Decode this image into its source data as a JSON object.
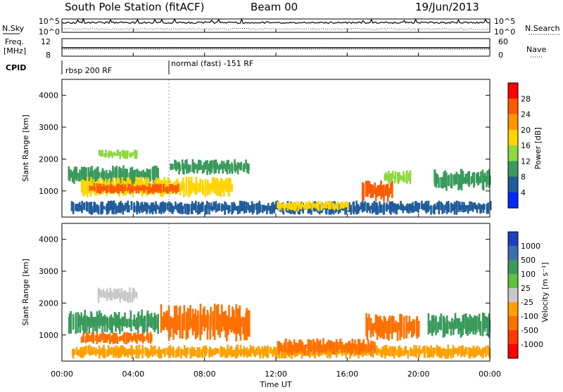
{
  "header": {
    "station": "South Pole Station (fitACF)",
    "beam": "Beam 00",
    "date": "19/Jun/2013"
  },
  "top_panels": {
    "nsky_label": "N.Sky",
    "nsky_ticks": [
      "10^5",
      "10^0"
    ],
    "nsearch_label": "N.Search",
    "nsearch_ticks": [
      "10^5",
      "10^0"
    ],
    "freq_label": "Freq.",
    "freq_unit": "[MHz]",
    "freq_ticks": [
      "12",
      "8"
    ],
    "nave_label": "Nave",
    "nave_ticks": [
      "60",
      "0"
    ],
    "cpid_label": "CPID",
    "cpid_segments": [
      {
        "label": "rbsp 200 RF",
        "start_hour": 0
      },
      {
        "label": "normal (fast) -151 RF",
        "start_hour": 6
      }
    ]
  },
  "x_axis": {
    "label": "Time UT",
    "ticks": [
      "00:00",
      "04:00",
      "08:00",
      "12:00",
      "16:00",
      "20:00",
      "00:00"
    ],
    "range_hours": [
      0,
      24
    ]
  },
  "chart_data": [
    {
      "type": "heatmap",
      "title": "",
      "ylabel": "Slant Range [km]",
      "ylim": [
        180,
        4500
      ],
      "yticks": [
        "4000",
        "3000",
        "2000",
        "1000"
      ],
      "colorbar_label": "Power [dB]",
      "colorbar_ticks": [
        "28",
        "24",
        "20",
        "16",
        "12",
        "8",
        "4"
      ],
      "colorbar_colors": [
        "#ff0000",
        "#ff5a00",
        "#ff9600",
        "#ffd400",
        "#8ed840",
        "#3a9a5c",
        "#205c9a",
        "#0028ff"
      ],
      "regions": [
        {
          "t": [
            0.3,
            5.4
          ],
          "r": [
            1200,
            1800
          ],
          "level": 12
        },
        {
          "t": [
            1.0,
            9.5
          ],
          "r": [
            800,
            1450
          ],
          "level": 20
        },
        {
          "t": [
            1.5,
            6.5
          ],
          "r": [
            900,
            1250
          ],
          "level": 28
        },
        {
          "t": [
            2.0,
            4.2
          ],
          "r": [
            2000,
            2300
          ],
          "level": 16
        },
        {
          "t": [
            6.0,
            10.5
          ],
          "r": [
            1500,
            2000
          ],
          "level": 12
        },
        {
          "t": [
            0.5,
            24.0
          ],
          "r": [
            250,
            700
          ],
          "level": 8
        },
        {
          "t": [
            12.0,
            16.0
          ],
          "r": [
            350,
            700
          ],
          "level": 20
        },
        {
          "t": [
            16.8,
            18.5
          ],
          "r": [
            650,
            1350
          ],
          "level": 28
        },
        {
          "t": [
            18.0,
            19.5
          ],
          "r": [
            1200,
            1650
          ],
          "level": 16
        },
        {
          "t": [
            20.8,
            24.0
          ],
          "r": [
            1000,
            1700
          ],
          "level": 12
        }
      ]
    },
    {
      "type": "heatmap",
      "title": "",
      "ylabel": "Slant Range [km]",
      "ylim": [
        180,
        4500
      ],
      "yticks": [
        "4000",
        "3000",
        "2000",
        "1000"
      ],
      "colorbar_label": "Velocity [m s⁻¹]",
      "colorbar_ticks": [
        "1000",
        "500",
        "100",
        "25",
        "-25",
        "-100",
        "-500",
        "-1000"
      ],
      "colorbar_colors": [
        "#2040c0",
        "#3a70b0",
        "#3a9a5c",
        "#60c040",
        "#c8c8c8",
        "#ffa000",
        "#ff7000",
        "#ff3a00",
        "#ff0000"
      ],
      "regions": [
        {
          "t": [
            0.3,
            5.4
          ],
          "r": [
            1000,
            1800
          ],
          "level": 100
        },
        {
          "t": [
            1.0,
            5.0
          ],
          "r": [
            700,
            1100
          ],
          "level": -500
        },
        {
          "t": [
            2.0,
            4.2
          ],
          "r": [
            2000,
            2500
          ],
          "level": 0
        },
        {
          "t": [
            5.5,
            10.5
          ],
          "r": [
            800,
            2000
          ],
          "level": -500
        },
        {
          "t": [
            0.5,
            24.0
          ],
          "r": [
            250,
            700
          ],
          "level": -100
        },
        {
          "t": [
            12.0,
            17.5
          ],
          "r": [
            350,
            900
          ],
          "level": -500
        },
        {
          "t": [
            17.0,
            20.0
          ],
          "r": [
            800,
            1700
          ],
          "level": -500
        },
        {
          "t": [
            20.5,
            24.0
          ],
          "r": [
            900,
            1700
          ],
          "level": 100
        }
      ]
    }
  ]
}
